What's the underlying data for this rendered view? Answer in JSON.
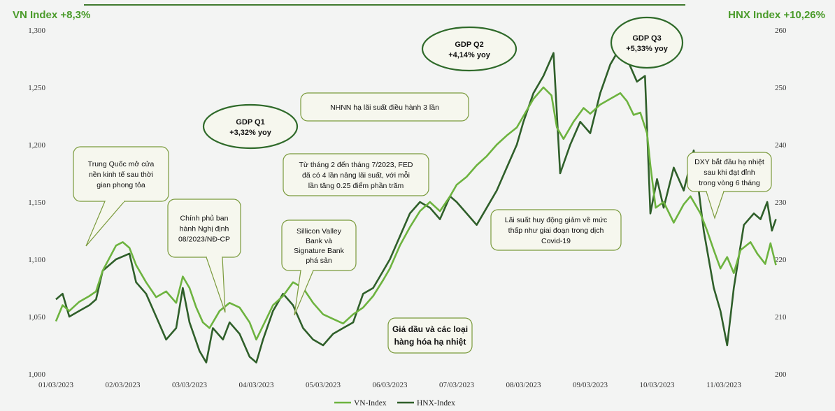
{
  "chart_data": {
    "type": "line",
    "title_left": "VN Index +8,3%",
    "title_right": "HNX Index +10,26%",
    "x_labels": [
      "01/03/2023",
      "02/03/2023",
      "03/03/2023",
      "04/03/2023",
      "05/03/2023",
      "06/03/2023",
      "07/03/2023",
      "08/03/2023",
      "09/03/2023",
      "10/03/2023",
      "11/03/2023"
    ],
    "y_left": {
      "ticks": [
        "1,000",
        "1,050",
        "1,100",
        "1,150",
        "1,200",
        "1,250",
        "1,300"
      ],
      "range": [
        1000,
        1300
      ]
    },
    "y_right": {
      "ticks": [
        "200",
        "210",
        "220",
        "230",
        "240",
        "250",
        "260"
      ],
      "range": [
        200,
        260
      ]
    },
    "series": [
      {
        "name": "VN-Index",
        "color": "#6db33f",
        "axis": "left",
        "points": [
          [
            0,
            1046
          ],
          [
            0.1,
            1060
          ],
          [
            0.2,
            1055
          ],
          [
            0.35,
            1063
          ],
          [
            0.5,
            1068
          ],
          [
            0.6,
            1072
          ],
          [
            0.7,
            1090
          ],
          [
            0.9,
            1112
          ],
          [
            1.0,
            1115
          ],
          [
            1.1,
            1110
          ],
          [
            1.2,
            1095
          ],
          [
            1.35,
            1080
          ],
          [
            1.5,
            1067
          ],
          [
            1.65,
            1072
          ],
          [
            1.8,
            1062
          ],
          [
            1.9,
            1085
          ],
          [
            2.0,
            1075
          ],
          [
            2.1,
            1058
          ],
          [
            2.2,
            1045
          ],
          [
            2.3,
            1040
          ],
          [
            2.45,
            1055
          ],
          [
            2.6,
            1062
          ],
          [
            2.75,
            1058
          ],
          [
            2.9,
            1045
          ],
          [
            3.0,
            1030
          ],
          [
            3.1,
            1042
          ],
          [
            3.25,
            1060
          ],
          [
            3.4,
            1068
          ],
          [
            3.55,
            1080
          ],
          [
            3.7,
            1075
          ],
          [
            3.85,
            1062
          ],
          [
            4.0,
            1052
          ],
          [
            4.15,
            1048
          ],
          [
            4.3,
            1044
          ],
          [
            4.45,
            1052
          ],
          [
            4.6,
            1058
          ],
          [
            4.75,
            1068
          ],
          [
            4.9,
            1082
          ],
          [
            5.0,
            1092
          ],
          [
            5.15,
            1112
          ],
          [
            5.3,
            1128
          ],
          [
            5.45,
            1142
          ],
          [
            5.6,
            1150
          ],
          [
            5.75,
            1142
          ],
          [
            5.9,
            1155
          ],
          [
            6.0,
            1165
          ],
          [
            6.15,
            1172
          ],
          [
            6.3,
            1182
          ],
          [
            6.45,
            1190
          ],
          [
            6.6,
            1200
          ],
          [
            6.75,
            1208
          ],
          [
            6.9,
            1215
          ],
          [
            7.0,
            1225
          ],
          [
            7.15,
            1240
          ],
          [
            7.3,
            1250
          ],
          [
            7.42,
            1243
          ],
          [
            7.5,
            1215
          ],
          [
            7.6,
            1205
          ],
          [
            7.75,
            1220
          ],
          [
            7.9,
            1232
          ],
          [
            8.0,
            1227
          ],
          [
            8.15,
            1235
          ],
          [
            8.3,
            1240
          ],
          [
            8.45,
            1245
          ],
          [
            8.55,
            1238
          ],
          [
            8.65,
            1226
          ],
          [
            8.75,
            1228
          ],
          [
            8.85,
            1210
          ],
          [
            8.9,
            1182
          ],
          [
            8.98,
            1145
          ],
          [
            9.1,
            1150
          ],
          [
            9.25,
            1132
          ],
          [
            9.4,
            1148
          ],
          [
            9.5,
            1155
          ],
          [
            9.65,
            1140
          ],
          [
            9.75,
            1125
          ],
          [
            9.85,
            1108
          ],
          [
            9.95,
            1092
          ],
          [
            10.05,
            1102
          ],
          [
            10.15,
            1088
          ],
          [
            10.25,
            1108
          ],
          [
            10.4,
            1115
          ],
          [
            10.5,
            1105
          ],
          [
            10.62,
            1096
          ],
          [
            10.7,
            1114
          ],
          [
            10.78,
            1095
          ]
        ]
      },
      {
        "name": "HNX-Index",
        "color": "#2f5f2a",
        "axis": "right",
        "points": [
          [
            0,
            213
          ],
          [
            0.1,
            214
          ],
          [
            0.2,
            210
          ],
          [
            0.35,
            211
          ],
          [
            0.5,
            212
          ],
          [
            0.6,
            213
          ],
          [
            0.7,
            218
          ],
          [
            0.9,
            220
          ],
          [
            1.0,
            220.5
          ],
          [
            1.1,
            221
          ],
          [
            1.2,
            216
          ],
          [
            1.35,
            214
          ],
          [
            1.5,
            210
          ],
          [
            1.65,
            206
          ],
          [
            1.8,
            208
          ],
          [
            1.9,
            215
          ],
          [
            2.0,
            209
          ],
          [
            2.15,
            204
          ],
          [
            2.25,
            202
          ],
          [
            2.35,
            208
          ],
          [
            2.5,
            206
          ],
          [
            2.6,
            209
          ],
          [
            2.75,
            207
          ],
          [
            2.9,
            203
          ],
          [
            3.0,
            202
          ],
          [
            3.1,
            206
          ],
          [
            3.25,
            211
          ],
          [
            3.4,
            214
          ],
          [
            3.55,
            212
          ],
          [
            3.7,
            208
          ],
          [
            3.85,
            206
          ],
          [
            4.0,
            205
          ],
          [
            4.15,
            207
          ],
          [
            4.3,
            208
          ],
          [
            4.45,
            209
          ],
          [
            4.6,
            214
          ],
          [
            4.75,
            215
          ],
          [
            4.9,
            218
          ],
          [
            5.0,
            220
          ],
          [
            5.15,
            224
          ],
          [
            5.3,
            228
          ],
          [
            5.45,
            230
          ],
          [
            5.6,
            229
          ],
          [
            5.75,
            227
          ],
          [
            5.9,
            231
          ],
          [
            6.0,
            230
          ],
          [
            6.15,
            228
          ],
          [
            6.3,
            226
          ],
          [
            6.45,
            229
          ],
          [
            6.6,
            232
          ],
          [
            6.75,
            236
          ],
          [
            6.9,
            240
          ],
          [
            7.0,
            244
          ],
          [
            7.15,
            249
          ],
          [
            7.3,
            252
          ],
          [
            7.45,
            256
          ],
          [
            7.55,
            235
          ],
          [
            7.7,
            240
          ],
          [
            7.85,
            244
          ],
          [
            8.0,
            242
          ],
          [
            8.15,
            249
          ],
          [
            8.3,
            254
          ],
          [
            8.45,
            257
          ],
          [
            8.55,
            255
          ],
          [
            8.7,
            251
          ],
          [
            8.82,
            252
          ],
          [
            8.9,
            228
          ],
          [
            9.0,
            234
          ],
          [
            9.1,
            229
          ],
          [
            9.25,
            236
          ],
          [
            9.4,
            232
          ],
          [
            9.55,
            239
          ],
          [
            9.7,
            225
          ],
          [
            9.85,
            215
          ],
          [
            9.95,
            211
          ],
          [
            10.05,
            205
          ],
          [
            10.15,
            215
          ],
          [
            10.3,
            226
          ],
          [
            10.45,
            228
          ],
          [
            10.55,
            227
          ],
          [
            10.65,
            230
          ],
          [
            10.72,
            225
          ],
          [
            10.78,
            227
          ]
        ]
      }
    ],
    "annotations": [
      {
        "kind": "box",
        "lines": [
          "Trung Quốc mở cửa",
          "nền kinh tế sau thời",
          "gian phong tỏa"
        ]
      },
      {
        "kind": "box",
        "lines": [
          "Chính phủ ban",
          "hành Nghị định",
          "08/2023/NĐ-CP"
        ]
      },
      {
        "kind": "box",
        "lines": [
          "Sillicon Valley",
          "Bank và",
          "Signature Bank",
          "phá sản"
        ]
      },
      {
        "kind": "box",
        "lines": [
          "Từ tháng 2 đến tháng 7/2023, FED",
          "đã có 4 lần nâng lãi suất, với mỗi",
          "lần tăng 0.25 điểm phần trăm"
        ]
      },
      {
        "kind": "box",
        "lines": [
          "NHNN hạ lãi suất điều hành 3 lần"
        ]
      },
      {
        "kind": "box",
        "lines": [
          "Giá dầu và các loại",
          "hàng hóa hạ nhiệt"
        ]
      },
      {
        "kind": "box",
        "lines": [
          "Lãi suất huy động giảm về mức",
          "thấp như giai đoạn trong dịch",
          "Covid-19"
        ]
      },
      {
        "kind": "box",
        "lines": [
          "DXY bắt đầu hạ nhiệt",
          "sau khi đạt đỉnh",
          "trong vòng 6 tháng"
        ]
      },
      {
        "kind": "ellipse",
        "lines": [
          "GDP Q1",
          "+3,32% yoy"
        ]
      },
      {
        "kind": "ellipse",
        "lines": [
          "GDP Q2",
          "+4,14% yoy"
        ]
      },
      {
        "kind": "ellipse",
        "lines": [
          "GDP Q3",
          "+5,33% yoy"
        ]
      }
    ],
    "legend": [
      "VN-Index",
      "HNX-Index"
    ],
    "legend_position": "bottom",
    "grid": false
  }
}
